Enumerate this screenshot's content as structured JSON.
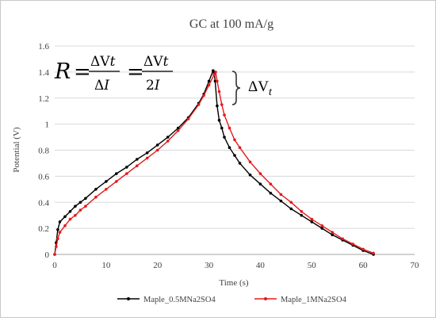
{
  "chart_data": {
    "type": "line",
    "title": "GC at 100 mA/g",
    "xlabel": "Time (s)",
    "ylabel": "Potential (V)",
    "xlim": [
      0,
      70
    ],
    "ylim": [
      0,
      1.6
    ],
    "x_ticks": [
      0,
      10,
      20,
      30,
      40,
      50,
      60,
      70
    ],
    "y_ticks": [
      0,
      0.2,
      0.4,
      0.6,
      0.8,
      1,
      1.2,
      1.4,
      1.6
    ],
    "grid": "horizontal",
    "legend": "bottom",
    "annotations": {
      "equation": "R = ΔVt/ΔI = ΔVt/2I",
      "brace_label": "ΔVt"
    },
    "series": [
      {
        "name": "Maple_0.5MNa2SO4",
        "color": "#000000",
        "x": [
          0,
          0.3,
          0.6,
          1,
          2,
          3,
          4,
          5,
          6,
          8,
          10,
          12,
          14,
          16,
          18,
          20,
          22,
          24,
          26,
          28,
          29,
          30,
          30.8,
          31.0,
          31.2,
          31.6,
          32,
          32.5,
          33,
          34,
          35,
          36,
          38,
          40,
          42,
          44,
          46,
          48,
          50,
          52,
          54,
          56,
          58,
          60,
          62
        ],
        "y": [
          0,
          0.09,
          0.19,
          0.25,
          0.29,
          0.33,
          0.37,
          0.4,
          0.43,
          0.5,
          0.56,
          0.62,
          0.67,
          0.73,
          0.78,
          0.84,
          0.9,
          0.97,
          1.05,
          1.16,
          1.23,
          1.33,
          1.41,
          1.4,
          1.33,
          1.14,
          1.03,
          0.97,
          0.9,
          0.82,
          0.76,
          0.7,
          0.61,
          0.54,
          0.47,
          0.41,
          0.35,
          0.3,
          0.25,
          0.2,
          0.15,
          0.11,
          0.07,
          0.03,
          0.0
        ]
      },
      {
        "name": "Maple_1MNa2SO4",
        "color": "#e31a1c",
        "x": [
          0,
          0.3,
          0.6,
          1,
          2,
          3,
          4,
          5,
          6,
          8,
          10,
          12,
          14,
          16,
          18,
          20,
          22,
          24,
          26,
          28,
          29,
          30,
          31,
          31.3,
          31.6,
          32,
          32.5,
          33,
          34,
          35,
          36,
          38,
          40,
          42,
          44,
          46,
          48,
          50,
          52,
          54,
          56,
          58,
          60,
          62
        ],
        "y": [
          0,
          0.06,
          0.12,
          0.17,
          0.22,
          0.27,
          0.3,
          0.34,
          0.37,
          0.44,
          0.5,
          0.56,
          0.62,
          0.68,
          0.74,
          0.8,
          0.87,
          0.95,
          1.04,
          1.15,
          1.22,
          1.3,
          1.38,
          1.4,
          1.33,
          1.25,
          1.15,
          1.07,
          0.97,
          0.88,
          0.82,
          0.71,
          0.62,
          0.54,
          0.46,
          0.4,
          0.33,
          0.27,
          0.22,
          0.17,
          0.12,
          0.08,
          0.04,
          0.01
        ]
      }
    ]
  }
}
